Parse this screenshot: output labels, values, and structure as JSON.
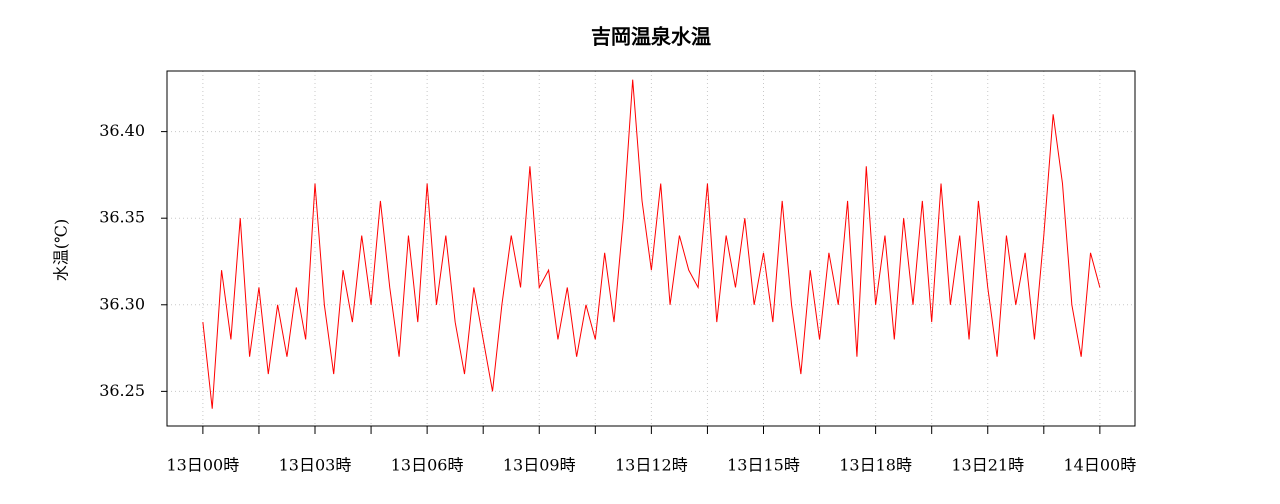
{
  "chart_data": {
    "type": "line",
    "title": "吉岡温泉水温",
    "y_label": "水温(℃)",
    "x": [
      0,
      0.25,
      0.5,
      0.75,
      1,
      1.25,
      1.5,
      1.75,
      2,
      2.25,
      2.5,
      2.75,
      3,
      3.25,
      3.5,
      3.75,
      4,
      4.25,
      4.5,
      4.75,
      5,
      5.25,
      5.5,
      5.75,
      6,
      6.25,
      6.5,
      6.75,
      7,
      7.25,
      7.5,
      7.75,
      8,
      8.25,
      8.5,
      8.75,
      9,
      9.25,
      9.5,
      9.75,
      10,
      10.25,
      10.5,
      10.75,
      11,
      11.25,
      11.5,
      11.75,
      12,
      12.25,
      12.5,
      12.75,
      13,
      13.25,
      13.5,
      13.75,
      14,
      14.25,
      14.5,
      14.75,
      15,
      15.25,
      15.5,
      15.75,
      16,
      16.25,
      16.5,
      16.75,
      17,
      17.25,
      17.5,
      17.75,
      18,
      18.25,
      18.5,
      18.75,
      19,
      19.25,
      19.5,
      19.75,
      20,
      20.25,
      20.5,
      20.75,
      21,
      21.25,
      21.5,
      21.75,
      22,
      22.25,
      22.5,
      22.75,
      23,
      23.25,
      23.5,
      23.75,
      24
    ],
    "series": [
      {
        "color": "#ff0000",
        "values": [
          36.29,
          36.24,
          36.32,
          36.28,
          36.35,
          36.27,
          36.31,
          36.26,
          36.3,
          36.27,
          36.31,
          36.28,
          36.37,
          36.3,
          36.26,
          36.32,
          36.29,
          36.34,
          36.3,
          36.36,
          36.31,
          36.27,
          36.34,
          36.29,
          36.37,
          36.3,
          36.34,
          36.29,
          36.26,
          36.31,
          36.28,
          36.25,
          36.3,
          36.34,
          36.31,
          36.38,
          36.31,
          36.32,
          36.28,
          36.31,
          36.27,
          36.3,
          36.28,
          36.33,
          36.29,
          36.35,
          36.43,
          36.36,
          36.32,
          36.37,
          36.3,
          36.34,
          36.32,
          36.31,
          36.37,
          36.29,
          36.34,
          36.31,
          36.35,
          36.3,
          36.33,
          36.29,
          36.36,
          36.3,
          36.26,
          36.32,
          36.28,
          36.33,
          36.3,
          36.36,
          36.27,
          36.38,
          36.3,
          36.34,
          36.28,
          36.35,
          36.3,
          36.36,
          36.29,
          36.37,
          36.3,
          36.34,
          36.28,
          36.36,
          36.31,
          36.27,
          36.34,
          36.3,
          36.33,
          36.28,
          36.34,
          36.41,
          36.37,
          36.3,
          36.27,
          36.33,
          36.31
        ]
      }
    ],
    "xlim": [
      -0.96,
      24.94
    ],
    "ylim": [
      36.23,
      36.435
    ],
    "xticks": [
      {
        "value": 0,
        "label": "13日00時"
      },
      {
        "value": 3,
        "label": "13日03時"
      },
      {
        "value": 6,
        "label": "13日06時"
      },
      {
        "value": 9,
        "label": "13日09時"
      },
      {
        "value": 12,
        "label": "13日12時"
      },
      {
        "value": 15,
        "label": "13日15時"
      },
      {
        "value": 18,
        "label": "13日18時"
      },
      {
        "value": 21,
        "label": "13日21時"
      },
      {
        "value": 24,
        "label": "14日00時"
      }
    ],
    "xminorticks": [
      1.5,
      4.5,
      7.5,
      10.5,
      13.5,
      16.5,
      19.5,
      22.5
    ],
    "yticks": [
      36.25,
      {
        "value": 36.3,
        "label": "36.30"
      },
      36.35,
      {
        "value": 36.4,
        "label": "36.40"
      }
    ],
    "grid": true
  }
}
